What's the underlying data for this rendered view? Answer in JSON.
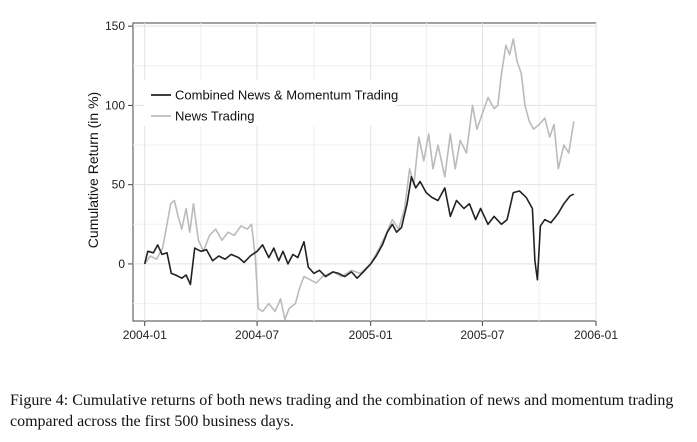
{
  "chart_data": {
    "type": "line",
    "title": "",
    "xlabel": "",
    "ylabel": "Cumulative Return (in %)",
    "x_ticks": [
      "2004-01",
      "2004-07",
      "2005-01",
      "2005-07",
      "2006-01"
    ],
    "y_ticks": [
      0,
      50,
      100,
      150
    ],
    "xlim": [
      "2003-12-13",
      "2006-01-01"
    ],
    "ylim": [
      -36,
      152
    ],
    "grid": true,
    "legend": "top-left",
    "series": [
      {
        "name": "Combined News & Momentum Trading",
        "color": "#222222",
        "points": [
          [
            "2004-01-01",
            0
          ],
          [
            "2004-01-06",
            8
          ],
          [
            "2004-01-15",
            7
          ],
          [
            "2004-01-22",
            12
          ],
          [
            "2004-01-29",
            6
          ],
          [
            "2004-02-06",
            7
          ],
          [
            "2004-02-13",
            -6
          ],
          [
            "2004-02-20",
            -7
          ],
          [
            "2004-03-01",
            -9
          ],
          [
            "2004-03-08",
            -7
          ],
          [
            "2004-03-15",
            -13
          ],
          [
            "2004-03-22",
            10
          ],
          [
            "2004-04-01",
            8
          ],
          [
            "2004-04-10",
            9
          ],
          [
            "2004-04-20",
            2
          ],
          [
            "2004-04-30",
            5
          ],
          [
            "2004-05-10",
            3
          ],
          [
            "2004-05-20",
            6
          ],
          [
            "2004-06-01",
            4
          ],
          [
            "2004-06-10",
            1
          ],
          [
            "2004-06-20",
            5
          ],
          [
            "2004-07-01",
            8
          ],
          [
            "2004-07-10",
            12
          ],
          [
            "2004-07-20",
            4
          ],
          [
            "2004-07-28",
            10
          ],
          [
            "2004-08-05",
            2
          ],
          [
            "2004-08-12",
            8
          ],
          [
            "2004-08-20",
            0
          ],
          [
            "2004-08-28",
            6
          ],
          [
            "2004-09-05",
            4
          ],
          [
            "2004-09-15",
            14
          ],
          [
            "2004-09-22",
            -2
          ],
          [
            "2004-10-01",
            -6
          ],
          [
            "2004-10-10",
            -4
          ],
          [
            "2004-10-20",
            -8
          ],
          [
            "2004-11-01",
            -5
          ],
          [
            "2004-11-10",
            -6
          ],
          [
            "2004-11-20",
            -8
          ],
          [
            "2004-12-01",
            -5
          ],
          [
            "2004-12-10",
            -9
          ],
          [
            "2004-12-20",
            -5
          ],
          [
            "2005-01-01",
            0
          ],
          [
            "2005-01-10",
            5
          ],
          [
            "2005-01-20",
            12
          ],
          [
            "2005-01-28",
            20
          ],
          [
            "2005-02-05",
            25
          ],
          [
            "2005-02-12",
            20
          ],
          [
            "2005-02-20",
            23
          ],
          [
            "2005-03-01",
            38
          ],
          [
            "2005-03-08",
            55
          ],
          [
            "2005-03-15",
            48
          ],
          [
            "2005-03-22",
            52
          ],
          [
            "2005-04-01",
            45
          ],
          [
            "2005-04-10",
            42
          ],
          [
            "2005-04-20",
            40
          ],
          [
            "2005-05-01",
            48
          ],
          [
            "2005-05-10",
            30
          ],
          [
            "2005-05-20",
            40
          ],
          [
            "2005-06-01",
            35
          ],
          [
            "2005-06-10",
            38
          ],
          [
            "2005-06-20",
            28
          ],
          [
            "2005-06-28",
            35
          ],
          [
            "2005-07-10",
            25
          ],
          [
            "2005-07-20",
            30
          ],
          [
            "2005-08-01",
            25
          ],
          [
            "2005-08-10",
            28
          ],
          [
            "2005-08-20",
            45
          ],
          [
            "2005-08-30",
            46
          ],
          [
            "2005-09-10",
            42
          ],
          [
            "2005-09-20",
            35
          ],
          [
            "2005-09-24",
            2
          ],
          [
            "2005-09-28",
            -10
          ],
          [
            "2005-10-03",
            24
          ],
          [
            "2005-10-10",
            28
          ],
          [
            "2005-10-20",
            26
          ],
          [
            "2005-11-01",
            32
          ],
          [
            "2005-11-10",
            38
          ],
          [
            "2005-11-20",
            43
          ],
          [
            "2005-11-26",
            44
          ]
        ]
      },
      {
        "name": "News Trading",
        "color": "#bbbbbb",
        "points": [
          [
            "2004-01-01",
            0
          ],
          [
            "2004-01-10",
            5
          ],
          [
            "2004-01-20",
            3
          ],
          [
            "2004-01-30",
            10
          ],
          [
            "2004-02-06",
            25
          ],
          [
            "2004-02-12",
            38
          ],
          [
            "2004-02-18",
            40
          ],
          [
            "2004-02-24",
            30
          ],
          [
            "2004-03-01",
            22
          ],
          [
            "2004-03-08",
            35
          ],
          [
            "2004-03-14",
            20
          ],
          [
            "2004-03-20",
            38
          ],
          [
            "2004-03-28",
            15
          ],
          [
            "2004-04-05",
            8
          ],
          [
            "2004-04-15",
            18
          ],
          [
            "2004-04-25",
            22
          ],
          [
            "2004-05-05",
            15
          ],
          [
            "2004-05-15",
            20
          ],
          [
            "2004-05-25",
            18
          ],
          [
            "2004-06-05",
            24
          ],
          [
            "2004-06-15",
            22
          ],
          [
            "2004-06-22",
            25
          ],
          [
            "2004-06-28",
            5
          ],
          [
            "2004-07-03",
            -28
          ],
          [
            "2004-07-10",
            -30
          ],
          [
            "2004-07-20",
            -25
          ],
          [
            "2004-07-30",
            -30
          ],
          [
            "2004-08-08",
            -22
          ],
          [
            "2004-08-15",
            -35
          ],
          [
            "2004-08-22",
            -28
          ],
          [
            "2004-09-01",
            -25
          ],
          [
            "2004-09-08",
            -15
          ],
          [
            "2004-09-15",
            -8
          ],
          [
            "2004-09-25",
            -10
          ],
          [
            "2004-10-05",
            -12
          ],
          [
            "2004-10-15",
            -8
          ],
          [
            "2004-11-01",
            -5
          ],
          [
            "2004-11-15",
            -8
          ],
          [
            "2004-12-01",
            -4
          ],
          [
            "2004-12-15",
            -6
          ],
          [
            "2005-01-01",
            0
          ],
          [
            "2005-01-15",
            10
          ],
          [
            "2005-01-25",
            18
          ],
          [
            "2005-02-05",
            28
          ],
          [
            "2005-02-15",
            22
          ],
          [
            "2005-02-25",
            35
          ],
          [
            "2005-03-05",
            60
          ],
          [
            "2005-03-12",
            50
          ],
          [
            "2005-03-20",
            80
          ],
          [
            "2005-03-28",
            65
          ],
          [
            "2005-04-05",
            82
          ],
          [
            "2005-04-12",
            60
          ],
          [
            "2005-04-20",
            75
          ],
          [
            "2005-05-01",
            55
          ],
          [
            "2005-05-10",
            82
          ],
          [
            "2005-05-18",
            60
          ],
          [
            "2005-05-26",
            78
          ],
          [
            "2005-06-05",
            70
          ],
          [
            "2005-06-15",
            100
          ],
          [
            "2005-06-22",
            85
          ],
          [
            "2005-07-01",
            95
          ],
          [
            "2005-07-10",
            105
          ],
          [
            "2005-07-20",
            98
          ],
          [
            "2005-07-26",
            100
          ],
          [
            "2005-08-01",
            120
          ],
          [
            "2005-08-08",
            138
          ],
          [
            "2005-08-14",
            132
          ],
          [
            "2005-08-20",
            142
          ],
          [
            "2005-08-26",
            128
          ],
          [
            "2005-09-02",
            120
          ],
          [
            "2005-09-08",
            100
          ],
          [
            "2005-09-15",
            90
          ],
          [
            "2005-09-22",
            85
          ],
          [
            "2005-10-01",
            88
          ],
          [
            "2005-10-10",
            92
          ],
          [
            "2005-10-18",
            80
          ],
          [
            "2005-10-25",
            88
          ],
          [
            "2005-11-01",
            60
          ],
          [
            "2005-11-10",
            75
          ],
          [
            "2005-11-18",
            70
          ],
          [
            "2005-11-26",
            90
          ]
        ]
      }
    ]
  },
  "caption": "Figure 4: Cumulative returns of both news trading and the combination of news and momentum trading compared across the first 500 business days."
}
